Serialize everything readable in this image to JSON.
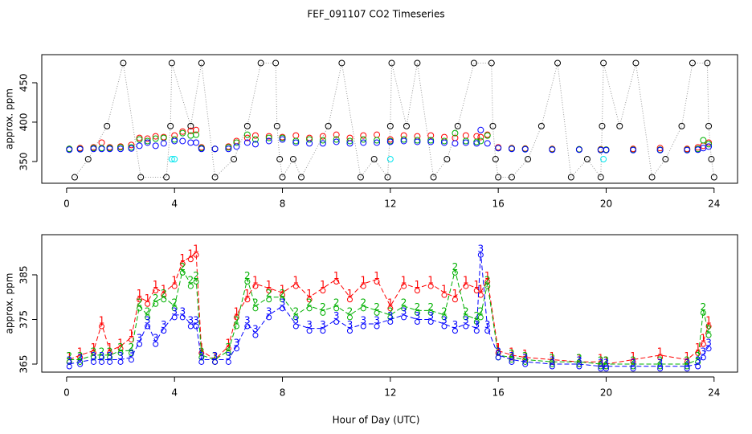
{
  "chart_data": [
    {
      "type": "scatter",
      "title": "FEF_091107  CO2 Timeseries",
      "ylabel": "approx. ppm",
      "xlim": [
        -0.92,
        24.87
      ],
      "xticks": [
        0,
        4,
        8,
        12,
        16,
        20,
        24
      ],
      "ylim": [
        322.4,
        485.7
      ],
      "yticks": [
        350,
        400,
        450
      ],
      "x": [
        0.1,
        0.5,
        1,
        1.3,
        1.6,
        2,
        2.4,
        2.7,
        3,
        3.3,
        3.6,
        4,
        4.3,
        4.6,
        4.8,
        5,
        5.5,
        6,
        6.3,
        6.7,
        7,
        7.5,
        8,
        8.5,
        9,
        9.5,
        10,
        10.5,
        11,
        11.5,
        12,
        12.5,
        13,
        13.5,
        14,
        14.4,
        14.8,
        15.2,
        15.35,
        15.6,
        16,
        16.5,
        17,
        18,
        19,
        19.8,
        20,
        21,
        22,
        23,
        23.4,
        23.6,
        23.8
      ],
      "series": [
        {
          "color": "#000000",
          "connect": true,
          "x": [
            0.3,
            0.8,
            1.5,
            2.1,
            2.75,
            3.7,
            3.85,
            3.9,
            4.6,
            5.0,
            5.5,
            6.2,
            6.7,
            7.2,
            7.75,
            7.8,
            7.9,
            8.0,
            8.4,
            8.7,
            9.7,
            10.2,
            10.9,
            11.4,
            11.9,
            12.0,
            12.05,
            12.6,
            13.0,
            13.6,
            14.1,
            14.5,
            15.1,
            15.75,
            15.8,
            15.9,
            16.0,
            16.5,
            17.1,
            17.6,
            18.2,
            18.7,
            19.3,
            19.8,
            19.85,
            19.9,
            20.5,
            21.1,
            21.7,
            22.2,
            22.8,
            23.2,
            23.75,
            23.8,
            23.9,
            24.0
          ],
          "values": [
            330,
            353,
            395,
            475,
            330,
            330,
            395,
            475,
            395,
            475,
            330,
            353,
            395,
            475,
            475,
            395,
            353,
            330,
            353,
            330,
            395,
            475,
            330,
            353,
            330,
            395,
            475,
            395,
            475,
            330,
            353,
            395,
            475,
            475,
            395,
            353,
            330,
            330,
            353,
            395,
            475,
            330,
            353,
            330,
            395,
            475,
            395,
            475,
            330,
            353,
            395,
            475,
            475,
            395,
            353,
            330
          ]
        },
        {
          "color": "#ff0000",
          "values": [
            366,
            367,
            368,
            374,
            368,
            369,
            371,
            380,
            379,
            382,
            381,
            383,
            388,
            389,
            390,
            368,
            366,
            369,
            376,
            380,
            383,
            382,
            381,
            383,
            380,
            382,
            384,
            380,
            383,
            384,
            378,
            383,
            382,
            383,
            381,
            380,
            383,
            382,
            381,
            384,
            368,
            367,
            366.5,
            366,
            365.5,
            365.5,
            365,
            366,
            367,
            366,
            368,
            370,
            374
          ]
        },
        {
          "color": "#00b000",
          "values": [
            366,
            366,
            367,
            367,
            367,
            368,
            368,
            378,
            376,
            379,
            380,
            378,
            386,
            383,
            384,
            367,
            366,
            368,
            374,
            384,
            378,
            380,
            380,
            376,
            378,
            377,
            378,
            376,
            378,
            377,
            376,
            378,
            377,
            377,
            376,
            386,
            376,
            375,
            376,
            383,
            367,
            366.5,
            366,
            365.5,
            365.5,
            365,
            365,
            365,
            365,
            365,
            366,
            377,
            372
          ]
        },
        {
          "color": "#0000ff",
          "values": [
            365,
            365.5,
            366,
            366,
            366,
            366,
            366.5,
            370,
            374,
            370,
            373,
            376,
            376,
            374,
            374,
            366,
            366,
            366,
            369,
            374,
            372,
            376,
            378,
            374,
            373,
            373,
            375,
            373,
            374,
            374,
            375,
            376,
            375,
            375,
            374,
            373,
            374,
            373,
            390,
            373,
            367,
            366,
            365.5,
            365,
            365,
            364.5,
            364.5,
            364.5,
            364.5,
            364.5,
            365,
            367,
            369
          ]
        },
        {
          "color": "#00e5ee",
          "x": [
            3.9,
            4.0,
            12.0,
            19.9
          ],
          "values": [
            353,
            353,
            353,
            353
          ]
        }
      ]
    },
    {
      "type": "line",
      "ylabel": "approx. ppm",
      "xlabel": "Hour of Day (UTC)",
      "xlim": [
        -0.92,
        24.87
      ],
      "xticks": [
        0,
        4,
        8,
        12,
        16,
        20,
        24
      ],
      "ylim": [
        363.2,
        394
      ],
      "yticks": [
        365,
        375,
        385
      ],
      "x": [
        0.1,
        0.5,
        1,
        1.3,
        1.6,
        2,
        2.4,
        2.7,
        3,
        3.3,
        3.6,
        4,
        4.3,
        4.6,
        4.8,
        5,
        5.5,
        6,
        6.3,
        6.7,
        7,
        7.5,
        8,
        8.5,
        9,
        9.5,
        10,
        10.5,
        11,
        11.5,
        12,
        12.5,
        13,
        13.5,
        14,
        14.4,
        14.8,
        15.2,
        15.35,
        15.6,
        16,
        16.5,
        17,
        18,
        19,
        19.8,
        20,
        21,
        22,
        23,
        23.4,
        23.6,
        23.8
      ],
      "series": [
        {
          "color": "#ff0000",
          "marker": "1",
          "values": [
            366,
            367,
            368,
            374,
            368,
            369,
            371,
            380,
            379,
            382,
            381,
            383,
            388,
            389,
            390,
            368,
            366,
            369,
            376,
            380,
            383,
            382,
            381,
            383,
            380,
            382,
            384,
            380,
            383,
            384,
            378,
            383,
            382,
            383,
            381,
            380,
            383,
            382,
            381,
            384,
            368,
            367,
            366.5,
            366,
            365.5,
            365.5,
            365,
            366,
            367,
            366,
            368,
            370,
            374
          ]
        },
        {
          "color": "#00b000",
          "marker": "2",
          "values": [
            366,
            366,
            367,
            367,
            367,
            368,
            368,
            378,
            376,
            379,
            380,
            378,
            386,
            383,
            384,
            367,
            366,
            368,
            374,
            384,
            378,
            380,
            380,
            376,
            378,
            377,
            378,
            376,
            378,
            377,
            376,
            378,
            377,
            377,
            376,
            386,
            376,
            375,
            376,
            383,
            367,
            366.5,
            366,
            365.5,
            365.5,
            365,
            365,
            365,
            365,
            365,
            366,
            377,
            372
          ]
        },
        {
          "color": "#0000ff",
          "marker": "3",
          "values": [
            365,
            365.5,
            366,
            366,
            366,
            366,
            366.5,
            370,
            374,
            370,
            373,
            376,
            376,
            374,
            374,
            366,
            366,
            366,
            369,
            374,
            372,
            376,
            378,
            374,
            373,
            373,
            375,
            373,
            374,
            374,
            375,
            376,
            375,
            375,
            374,
            373,
            374,
            373,
            390,
            373,
            367,
            366,
            365.5,
            365,
            365,
            364.5,
            364.5,
            364.5,
            364.5,
            364.5,
            365,
            367,
            369
          ]
        }
      ]
    }
  ]
}
